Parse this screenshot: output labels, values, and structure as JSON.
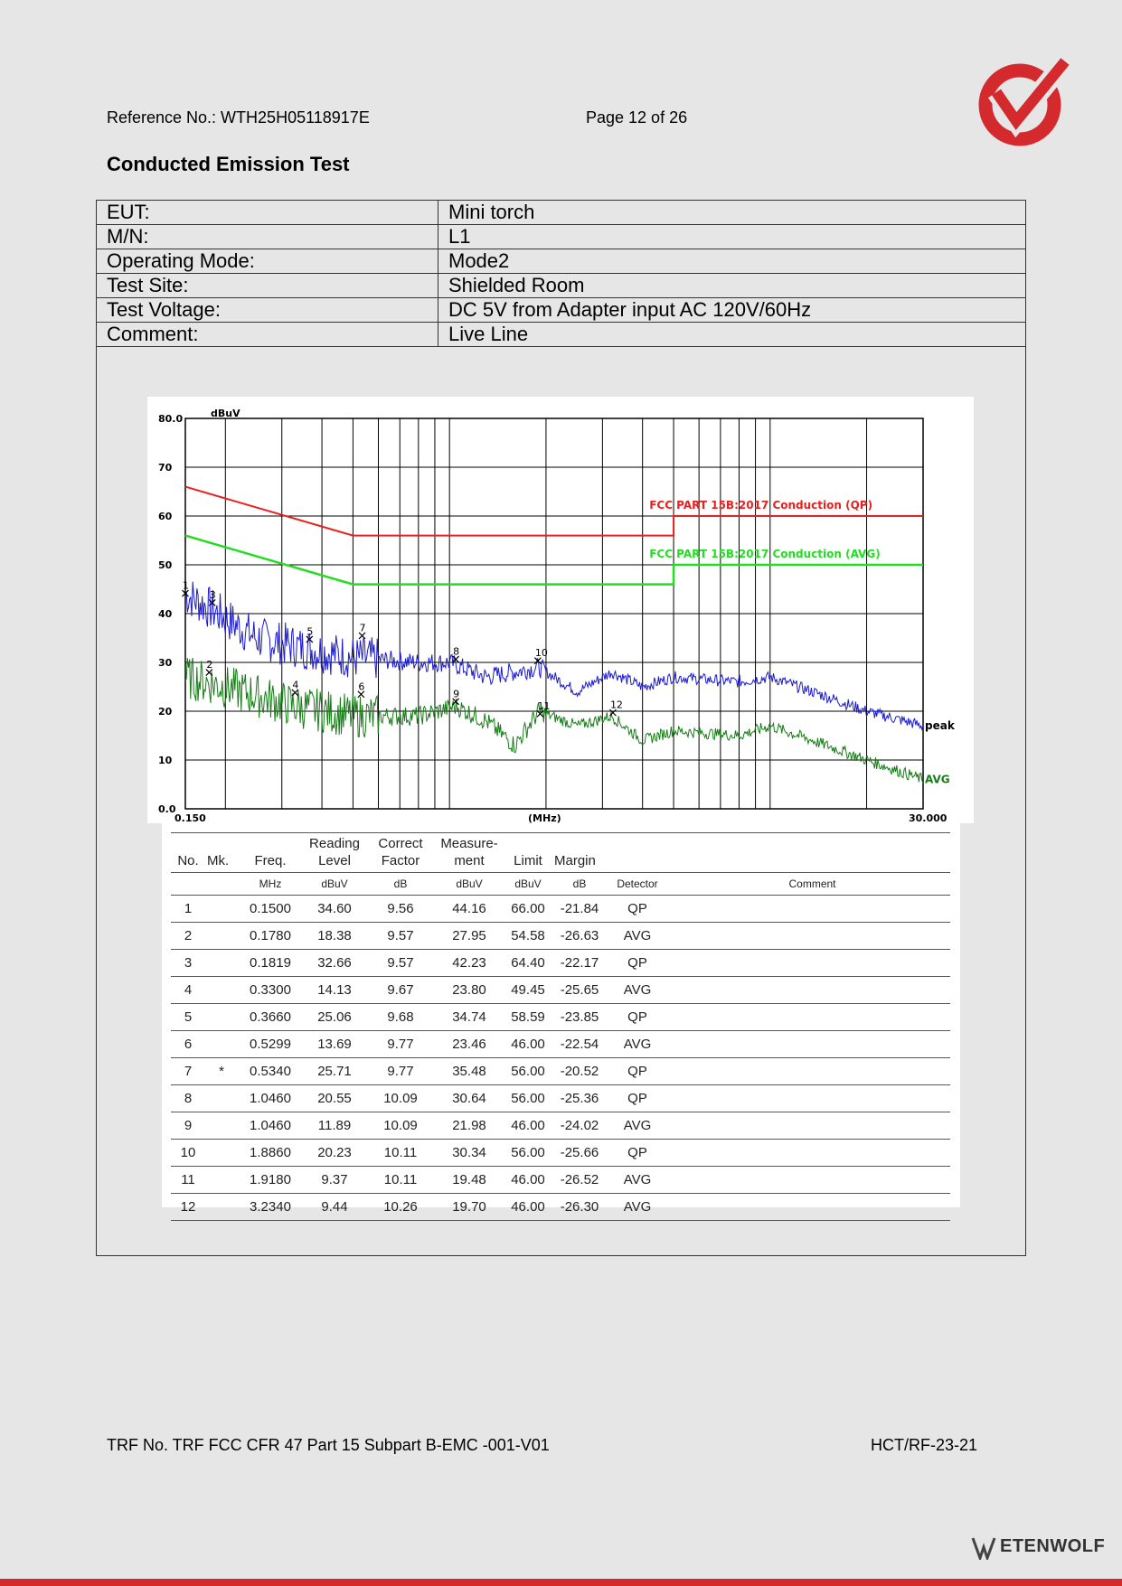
{
  "header": {
    "reference": "Reference No.: WTH25H05118917E",
    "page": "Page 12 of 26"
  },
  "title": "Conducted Emission Test",
  "info": [
    {
      "label": "EUT:",
      "value": "Mini torch"
    },
    {
      "label": "M/N:",
      "value": "L1"
    },
    {
      "label": "Operating Mode:",
      "value": "Mode2"
    },
    {
      "label": "Test Site:",
      "value": "Shielded Room"
    },
    {
      "label": "Test Voltage:",
      "value": "DC 5V from Adapter input AC 120V/60Hz"
    },
    {
      "label": "Comment:",
      "value": "Live Line"
    }
  ],
  "chart_data": {
    "type": "line",
    "yunit": "dBuV",
    "xlabel": "(MHz)",
    "xscale": "log",
    "xlim": [
      0.15,
      30
    ],
    "ylim": [
      0,
      80
    ],
    "xtick_labels": [
      "0.150",
      "30.000"
    ],
    "yticks": [
      0,
      10,
      20,
      30,
      40,
      50,
      60,
      70,
      80
    ],
    "ytick_labels": [
      "0.0",
      "10",
      "20",
      "30",
      "40",
      "50",
      "60",
      "70",
      "80.0"
    ],
    "limit_lines": [
      {
        "name": "FCC PART 15B:2017 Conduction (QP)",
        "color": "#e8201e",
        "points": [
          [
            0.15,
            66
          ],
          [
            0.5,
            56
          ],
          [
            5,
            56
          ],
          [
            5,
            60
          ],
          [
            30,
            60
          ]
        ]
      },
      {
        "name": "FCC PART 15B:2017 Conduction (AVG)",
        "color": "#22dd22",
        "points": [
          [
            0.15,
            56
          ],
          [
            0.5,
            46
          ],
          [
            5,
            46
          ],
          [
            5,
            50
          ],
          [
            30,
            50
          ]
        ]
      }
    ],
    "series": [
      {
        "name": "peak",
        "color": "#1a1ad0",
        "points": [
          [
            0.15,
            44
          ],
          [
            0.18,
            41
          ],
          [
            0.25,
            35
          ],
          [
            0.35,
            33
          ],
          [
            0.5,
            31
          ],
          [
            0.8,
            30
          ],
          [
            1.0,
            30
          ],
          [
            1.3,
            27
          ],
          [
            1.9,
            29
          ],
          [
            2.5,
            24
          ],
          [
            3.2,
            28
          ],
          [
            4.0,
            25
          ],
          [
            5,
            27
          ],
          [
            8,
            26
          ],
          [
            10,
            27
          ],
          [
            15,
            23
          ],
          [
            20,
            20
          ],
          [
            30,
            17
          ]
        ]
      },
      {
        "name": "AVG",
        "color": "#167d16",
        "points": [
          [
            0.15,
            27
          ],
          [
            0.2,
            25
          ],
          [
            0.33,
            21
          ],
          [
            0.5,
            19
          ],
          [
            0.8,
            19
          ],
          [
            1.05,
            21
          ],
          [
            1.3,
            18
          ],
          [
            1.6,
            13
          ],
          [
            1.9,
            20
          ],
          [
            2.5,
            17
          ],
          [
            3.2,
            19
          ],
          [
            4.0,
            14
          ],
          [
            5,
            16
          ],
          [
            8,
            15
          ],
          [
            10,
            17
          ],
          [
            15,
            13
          ],
          [
            20,
            10
          ],
          [
            30,
            6
          ]
        ]
      }
    ],
    "markers": [
      {
        "n": "1",
        "x": 0.15,
        "y": 44.16
      },
      {
        "n": "2",
        "x": 0.178,
        "y": 27.95
      },
      {
        "n": "3",
        "x": 0.1819,
        "y": 42.23
      },
      {
        "n": "4",
        "x": 0.33,
        "y": 23.8
      },
      {
        "n": "5",
        "x": 0.366,
        "y": 34.74
      },
      {
        "n": "6",
        "x": 0.5299,
        "y": 23.46
      },
      {
        "n": "7",
        "x": 0.534,
        "y": 35.48
      },
      {
        "n": "8",
        "x": 1.046,
        "y": 30.64
      },
      {
        "n": "9",
        "x": 1.046,
        "y": 21.98
      },
      {
        "n": "10",
        "x": 1.886,
        "y": 30.34
      },
      {
        "n": "11",
        "x": 1.918,
        "y": 19.48
      },
      {
        "n": "12",
        "x": 3.234,
        "y": 19.7
      }
    ]
  },
  "results": {
    "headers": [
      "No.",
      "Mk.",
      "Freq.",
      "Reading Level",
      "Correct Factor",
      "Measure- ment",
      "Limit",
      "Margin",
      "",
      ""
    ],
    "units": [
      "",
      "",
      "MHz",
      "dBuV",
      "dB",
      "dBuV",
      "dBuV",
      "dB",
      "Detector",
      "Comment"
    ],
    "rows": [
      [
        "1",
        "",
        "0.1500",
        "34.60",
        "9.56",
        "44.16",
        "66.00",
        "-21.84",
        "QP",
        ""
      ],
      [
        "2",
        "",
        "0.1780",
        "18.38",
        "9.57",
        "27.95",
        "54.58",
        "-26.63",
        "AVG",
        ""
      ],
      [
        "3",
        "",
        "0.1819",
        "32.66",
        "9.57",
        "42.23",
        "64.40",
        "-22.17",
        "QP",
        ""
      ],
      [
        "4",
        "",
        "0.3300",
        "14.13",
        "9.67",
        "23.80",
        "49.45",
        "-25.65",
        "AVG",
        ""
      ],
      [
        "5",
        "",
        "0.3660",
        "25.06",
        "9.68",
        "34.74",
        "58.59",
        "-23.85",
        "QP",
        ""
      ],
      [
        "6",
        "",
        "0.5299",
        "13.69",
        "9.77",
        "23.46",
        "46.00",
        "-22.54",
        "AVG",
        ""
      ],
      [
        "7",
        "*",
        "0.5340",
        "25.71",
        "9.77",
        "35.48",
        "56.00",
        "-20.52",
        "QP",
        ""
      ],
      [
        "8",
        "",
        "1.0460",
        "20.55",
        "10.09",
        "30.64",
        "56.00",
        "-25.36",
        "QP",
        ""
      ],
      [
        "9",
        "",
        "1.0460",
        "11.89",
        "10.09",
        "21.98",
        "46.00",
        "-24.02",
        "AVG",
        ""
      ],
      [
        "10",
        "",
        "1.8860",
        "20.23",
        "10.11",
        "30.34",
        "56.00",
        "-25.66",
        "QP",
        ""
      ],
      [
        "11",
        "",
        "1.9180",
        "9.37",
        "10.11",
        "19.48",
        "46.00",
        "-26.52",
        "AVG",
        ""
      ],
      [
        "12",
        "",
        "3.2340",
        "9.44",
        "10.26",
        "19.70",
        "46.00",
        "-26.30",
        "AVG",
        ""
      ]
    ]
  },
  "footer": {
    "trf": "TRF No. TRF FCC CFR 47 Part 15 Subpart B-EMC -001-V01",
    "code": "HCT/RF-23-21",
    "brand": "ETENWOLF"
  },
  "colors": {
    "accent": "#d42a2e"
  }
}
